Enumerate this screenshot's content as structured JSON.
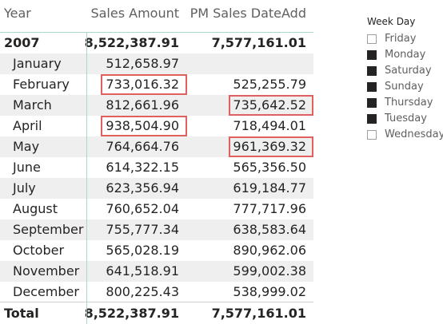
{
  "matrix": {
    "headers": {
      "year": "Year",
      "sales": "Sales Amount",
      "pm": "PM Sales DateAdd"
    },
    "year_row": {
      "label": "2007",
      "sales": "8,522,387.91",
      "pm": "7,577,161.01"
    },
    "months": [
      {
        "label": "January",
        "sales": "512,658.97",
        "pm": ""
      },
      {
        "label": "February",
        "sales": "733,016.32",
        "pm": "525,255.79"
      },
      {
        "label": "March",
        "sales": "812,661.96",
        "pm": "735,642.52"
      },
      {
        "label": "April",
        "sales": "938,504.90",
        "pm": "718,494.01"
      },
      {
        "label": "May",
        "sales": "764,664.76",
        "pm": "961,369.32"
      },
      {
        "label": "June",
        "sales": "614,322.15",
        "pm": "565,356.50"
      },
      {
        "label": "July",
        "sales": "623,356.94",
        "pm": "619,184.77"
      },
      {
        "label": "August",
        "sales": "760,652.04",
        "pm": "777,717.96"
      },
      {
        "label": "September",
        "sales": "755,777.34",
        "pm": "638,583.64"
      },
      {
        "label": "October",
        "sales": "565,028.19",
        "pm": "890,962.06"
      },
      {
        "label": "November",
        "sales": "641,518.91",
        "pm": "599,002.38"
      },
      {
        "label": "December",
        "sales": "800,225.43",
        "pm": "538,999.02"
      }
    ],
    "total_row": {
      "label": "Total",
      "sales": "8,522,387.91",
      "pm": "7,577,161.01"
    },
    "highlight_color": "#e06060"
  },
  "slicer": {
    "title": "Week Day",
    "items": [
      {
        "label": "Friday",
        "checked": false
      },
      {
        "label": "Monday",
        "checked": true
      },
      {
        "label": "Saturday",
        "checked": true
      },
      {
        "label": "Sunday",
        "checked": true
      },
      {
        "label": "Thursday",
        "checked": true
      },
      {
        "label": "Tuesday",
        "checked": true
      },
      {
        "label": "Wednesday",
        "checked": false
      }
    ]
  }
}
